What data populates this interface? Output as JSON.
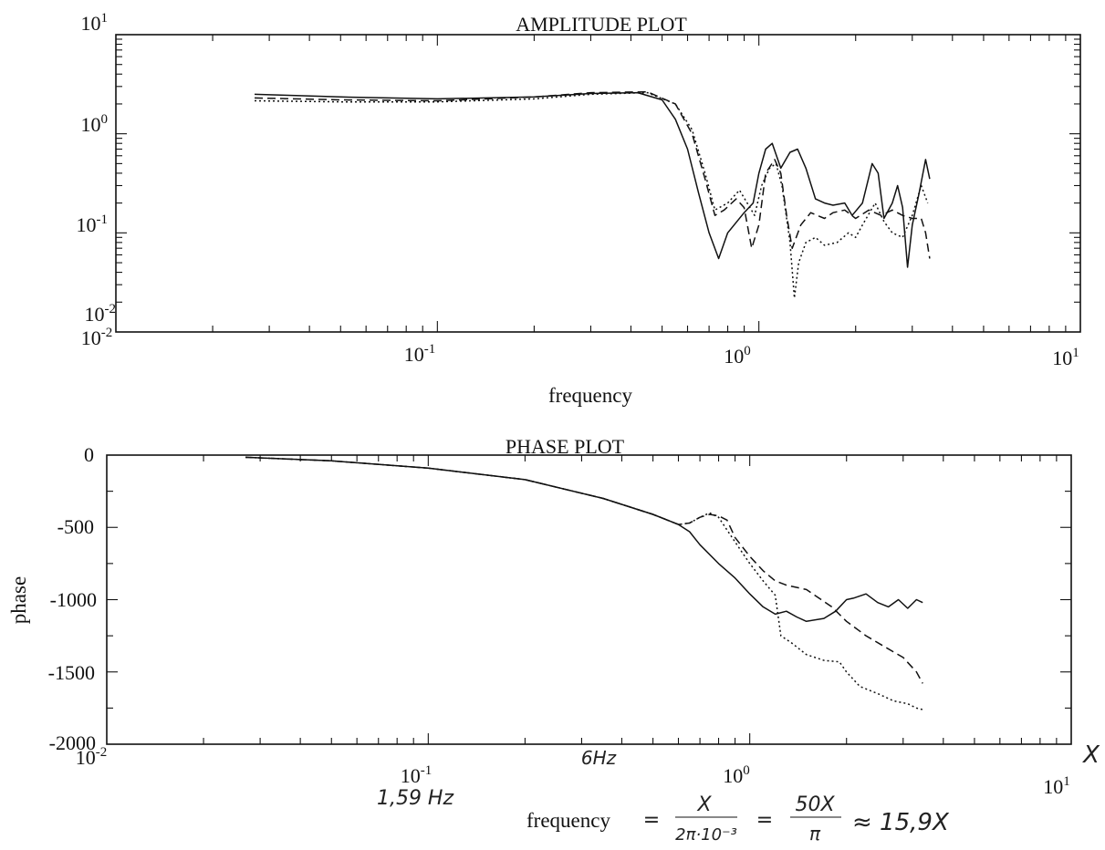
{
  "chart_data": [
    {
      "type": "line",
      "title": "AMPLITUDE PLOT",
      "xlabel": "frequency",
      "ylabel": "",
      "xscale": "log",
      "yscale": "log",
      "xlim": [
        0.01,
        10
      ],
      "ylim": [
        0.01,
        10
      ],
      "xticks": [
        {
          "label": "10-2",
          "base": "10",
          "exp": "-2"
        },
        {
          "label": "10-1",
          "base": "10",
          "exp": "-1"
        },
        {
          "label": "100",
          "base": "10",
          "exp": "0"
        },
        {
          "label": "101",
          "base": "10",
          "exp": "1"
        }
      ],
      "yticks": [
        {
          "label": "101",
          "base": "10",
          "exp": "1"
        },
        {
          "label": "100",
          "base": "10",
          "exp": "0"
        },
        {
          "label": "10-1",
          "base": "10",
          "exp": "-1"
        },
        {
          "label": "10-2",
          "base": "10",
          "exp": "-2"
        }
      ],
      "grid": false,
      "series": [
        {
          "style": "solid",
          "points": [
            [
              0.027,
              2.5
            ],
            [
              0.05,
              2.35
            ],
            [
              0.1,
              2.25
            ],
            [
              0.2,
              2.35
            ],
            [
              0.3,
              2.55
            ],
            [
              0.42,
              2.6
            ],
            [
              0.5,
              2.2
            ],
            [
              0.55,
              1.4
            ],
            [
              0.6,
              0.7
            ],
            [
              0.65,
              0.25
            ],
            [
              0.7,
              0.1
            ],
            [
              0.75,
              0.055
            ],
            [
              0.8,
              0.1
            ],
            [
              0.9,
              0.16
            ],
            [
              0.96,
              0.2
            ],
            [
              1.0,
              0.4
            ],
            [
              1.05,
              0.7
            ],
            [
              1.1,
              0.8
            ],
            [
              1.17,
              0.45
            ],
            [
              1.25,
              0.65
            ],
            [
              1.32,
              0.7
            ],
            [
              1.4,
              0.45
            ],
            [
              1.5,
              0.22
            ],
            [
              1.6,
              0.2
            ],
            [
              1.7,
              0.19
            ],
            [
              1.85,
              0.2
            ],
            [
              1.95,
              0.15
            ],
            [
              2.1,
              0.2
            ],
            [
              2.25,
              0.5
            ],
            [
              2.35,
              0.4
            ],
            [
              2.45,
              0.14
            ],
            [
              2.6,
              0.2
            ],
            [
              2.7,
              0.3
            ],
            [
              2.8,
              0.18
            ],
            [
              2.9,
              0.045
            ],
            [
              3.0,
              0.12
            ],
            [
              3.15,
              0.25
            ],
            [
              3.3,
              0.55
            ],
            [
              3.4,
              0.35
            ]
          ]
        },
        {
          "style": "dashed",
          "points": [
            [
              0.027,
              2.3
            ],
            [
              0.05,
              2.2
            ],
            [
              0.1,
              2.15
            ],
            [
              0.2,
              2.35
            ],
            [
              0.3,
              2.6
            ],
            [
              0.45,
              2.65
            ],
            [
              0.55,
              2.0
            ],
            [
              0.62,
              1.0
            ],
            [
              0.68,
              0.35
            ],
            [
              0.73,
              0.15
            ],
            [
              0.78,
              0.17
            ],
            [
              0.85,
              0.22
            ],
            [
              0.9,
              0.18
            ],
            [
              0.95,
              0.07
            ],
            [
              1.0,
              0.12
            ],
            [
              1.05,
              0.4
            ],
            [
              1.12,
              0.55
            ],
            [
              1.17,
              0.4
            ],
            [
              1.22,
              0.15
            ],
            [
              1.27,
              0.07
            ],
            [
              1.35,
              0.12
            ],
            [
              1.45,
              0.16
            ],
            [
              1.6,
              0.14
            ],
            [
              1.7,
              0.16
            ],
            [
              1.85,
              0.17
            ],
            [
              2.0,
              0.14
            ],
            [
              2.2,
              0.17
            ],
            [
              2.4,
              0.15
            ],
            [
              2.6,
              0.17
            ],
            [
              2.8,
              0.15
            ],
            [
              3.0,
              0.14
            ],
            [
              3.2,
              0.14
            ],
            [
              3.3,
              0.1
            ],
            [
              3.4,
              0.055
            ]
          ]
        },
        {
          "style": "dotted",
          "points": [
            [
              0.027,
              2.15
            ],
            [
              0.05,
              2.1
            ],
            [
              0.1,
              2.1
            ],
            [
              0.2,
              2.25
            ],
            [
              0.3,
              2.5
            ],
            [
              0.45,
              2.6
            ],
            [
              0.55,
              2.0
            ],
            [
              0.62,
              1.1
            ],
            [
              0.68,
              0.4
            ],
            [
              0.73,
              0.17
            ],
            [
              0.8,
              0.2
            ],
            [
              0.87,
              0.27
            ],
            [
              0.92,
              0.2
            ],
            [
              0.97,
              0.15
            ],
            [
              1.02,
              0.3
            ],
            [
              1.08,
              0.45
            ],
            [
              1.13,
              0.5
            ],
            [
              1.18,
              0.3
            ],
            [
              1.25,
              0.08
            ],
            [
              1.29,
              0.022
            ],
            [
              1.33,
              0.05
            ],
            [
              1.4,
              0.08
            ],
            [
              1.5,
              0.09
            ],
            [
              1.6,
              0.075
            ],
            [
              1.75,
              0.08
            ],
            [
              1.9,
              0.1
            ],
            [
              2.0,
              0.09
            ],
            [
              2.1,
              0.12
            ],
            [
              2.3,
              0.2
            ],
            [
              2.45,
              0.13
            ],
            [
              2.6,
              0.1
            ],
            [
              2.8,
              0.09
            ],
            [
              3.0,
              0.15
            ],
            [
              3.2,
              0.3
            ],
            [
              3.35,
              0.2
            ]
          ]
        }
      ]
    },
    {
      "type": "line",
      "title": "PHASE PLOT",
      "xlabel": "",
      "ylabel": "phase",
      "xscale": "log",
      "yscale": "linear",
      "xlim": [
        0.01,
        10
      ],
      "ylim": [
        -2000,
        0
      ],
      "xticks": [
        {
          "label": "10-2",
          "base": "10",
          "exp": "-2"
        },
        {
          "label": "10-1",
          "base": "10",
          "exp": "-1"
        },
        {
          "label": "100",
          "base": "10",
          "exp": "0"
        },
        {
          "label": "101",
          "base": "10",
          "exp": "1"
        }
      ],
      "yticks": [
        "0",
        "-500",
        "-1000",
        "-1500",
        "-2000"
      ],
      "grid": false,
      "series": [
        {
          "style": "solid",
          "points": [
            [
              0.027,
              -15
            ],
            [
              0.05,
              -40
            ],
            [
              0.1,
              -90
            ],
            [
              0.2,
              -170
            ],
            [
              0.35,
              -300
            ],
            [
              0.5,
              -410
            ],
            [
              0.6,
              -480
            ],
            [
              0.65,
              -530
            ],
            [
              0.7,
              -620
            ],
            [
              0.8,
              -750
            ],
            [
              0.9,
              -850
            ],
            [
              1.0,
              -960
            ],
            [
              1.1,
              -1050
            ],
            [
              1.2,
              -1100
            ],
            [
              1.3,
              -1080
            ],
            [
              1.4,
              -1120
            ],
            [
              1.5,
              -1150
            ],
            [
              1.7,
              -1130
            ],
            [
              1.85,
              -1080
            ],
            [
              2.0,
              -1000
            ],
            [
              2.1,
              -990
            ],
            [
              2.3,
              -960
            ],
            [
              2.5,
              -1020
            ],
            [
              2.7,
              -1050
            ],
            [
              2.9,
              -1000
            ],
            [
              3.1,
              -1060
            ],
            [
              3.3,
              -1000
            ],
            [
              3.45,
              -1020
            ]
          ]
        },
        {
          "style": "dashed",
          "points": [
            [
              0.027,
              -15
            ],
            [
              0.05,
              -40
            ],
            [
              0.1,
              -90
            ],
            [
              0.2,
              -170
            ],
            [
              0.35,
              -300
            ],
            [
              0.5,
              -410
            ],
            [
              0.6,
              -480
            ],
            [
              0.65,
              -470
            ],
            [
              0.7,
              -430
            ],
            [
              0.75,
              -410
            ],
            [
              0.8,
              -420
            ],
            [
              0.85,
              -450
            ],
            [
              0.9,
              -570
            ],
            [
              1.0,
              -700
            ],
            [
              1.1,
              -800
            ],
            [
              1.2,
              -870
            ],
            [
              1.3,
              -900
            ],
            [
              1.5,
              -930
            ],
            [
              1.8,
              -1050
            ],
            [
              2.0,
              -1150
            ],
            [
              2.3,
              -1250
            ],
            [
              2.6,
              -1320
            ],
            [
              3.0,
              -1400
            ],
            [
              3.3,
              -1500
            ],
            [
              3.45,
              -1580
            ]
          ]
        },
        {
          "style": "dotted",
          "points": [
            [
              0.027,
              -15
            ],
            [
              0.05,
              -40
            ],
            [
              0.1,
              -90
            ],
            [
              0.2,
              -170
            ],
            [
              0.35,
              -300
            ],
            [
              0.5,
              -410
            ],
            [
              0.6,
              -480
            ],
            [
              0.65,
              -470
            ],
            [
              0.7,
              -430
            ],
            [
              0.75,
              -400
            ],
            [
              0.8,
              -430
            ],
            [
              0.9,
              -600
            ],
            [
              1.0,
              -750
            ],
            [
              1.1,
              -870
            ],
            [
              1.2,
              -970
            ],
            [
              1.25,
              -1250
            ],
            [
              1.35,
              -1300
            ],
            [
              1.5,
              -1380
            ],
            [
              1.7,
              -1420
            ],
            [
              1.9,
              -1430
            ],
            [
              2.0,
              -1500
            ],
            [
              2.2,
              -1600
            ],
            [
              2.5,
              -1650
            ],
            [
              2.8,
              -1700
            ],
            [
              3.1,
              -1720
            ],
            [
              3.3,
              -1750
            ],
            [
              3.45,
              -1760
            ]
          ]
        }
      ]
    }
  ],
  "annotations": {
    "hz_left": "1,59 Hz",
    "hz_mid": "6Hz",
    "x_mark": "X",
    "formula_label": "frequency",
    "eq1": "=",
    "frac1_num": "X",
    "frac1_den": "2π·10⁻³",
    "eq2": "=",
    "frac2_num": "50X",
    "frac2_den": "π",
    "approx": "≈ 15,9X"
  }
}
